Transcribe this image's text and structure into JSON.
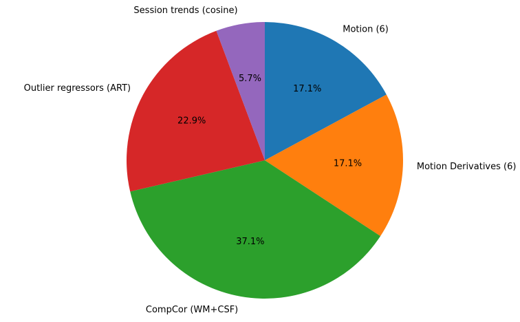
{
  "chart_data": {
    "type": "pie",
    "title": "",
    "start_angle_deg": 90,
    "direction": "clockwise",
    "slices": [
      {
        "label": "Motion (6)",
        "value": 17.1,
        "pct_label": "17.1%",
        "color": "#1f77b4"
      },
      {
        "label": "Motion Derivatives (6)",
        "value": 17.1,
        "pct_label": "17.1%",
        "color": "#ff7f0e"
      },
      {
        "label": "CompCor (WM+CSF)",
        "value": 37.1,
        "pct_label": "37.1%",
        "color": "#2ca02c"
      },
      {
        "label": "Outlier regressors (ART)",
        "value": 22.9,
        "pct_label": "22.9%",
        "color": "#d62728"
      },
      {
        "label": "Session trends (cosine)",
        "value": 5.7,
        "pct_label": "5.7%",
        "color": "#9467bd"
      }
    ]
  }
}
